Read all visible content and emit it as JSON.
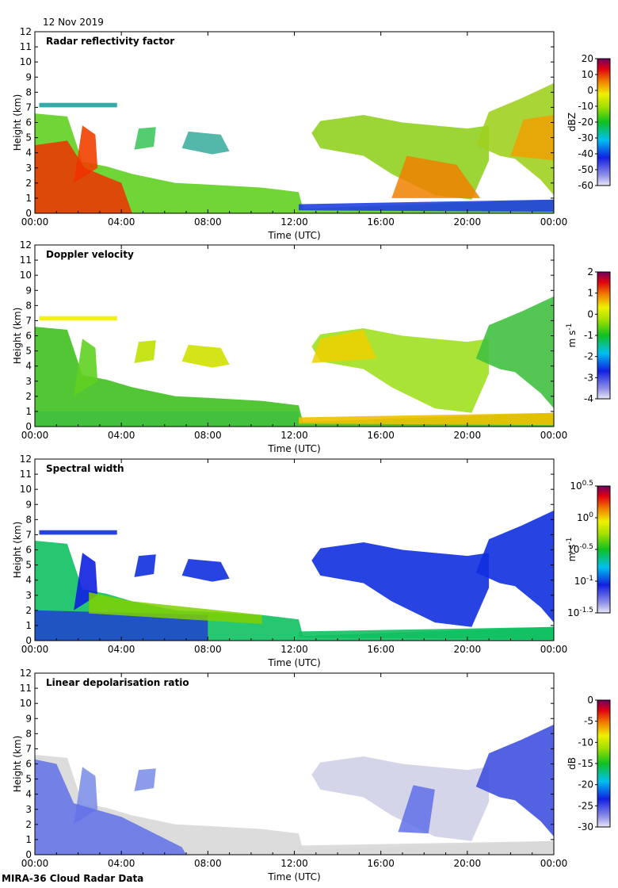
{
  "date_label": "12 Nov 2019",
  "footer_label": "MIRA-36 Cloud Radar Data",
  "chart_data": [
    {
      "type": "heatmap",
      "title": "Radar reflectivity factor",
      "xlabel": "Time (UTC)",
      "ylabel": "Height (km)",
      "xticks": [
        "00:00",
        "04:00",
        "08:00",
        "12:00",
        "16:00",
        "20:00",
        "00:00"
      ],
      "yticks": [
        "0",
        "1",
        "2",
        "3",
        "4",
        "5",
        "6",
        "7",
        "8",
        "9",
        "10",
        "11",
        "12"
      ],
      "ylim": [
        0,
        12
      ],
      "colorbar": {
        "label": "dBZ",
        "ticks": [
          "20",
          "10",
          "0",
          "-10",
          "-20",
          "-30",
          "-40",
          "-50",
          "-60"
        ],
        "range": [
          -60,
          20
        ],
        "scale": "linear"
      }
    },
    {
      "type": "heatmap",
      "title": "Doppler velocity",
      "xlabel": "Time (UTC)",
      "ylabel": "Height (km)",
      "xticks": [
        "00:00",
        "04:00",
        "08:00",
        "12:00",
        "16:00",
        "20:00",
        "00:00"
      ],
      "yticks": [
        "0",
        "1",
        "2",
        "3",
        "4",
        "5",
        "6",
        "7",
        "8",
        "9",
        "10",
        "11",
        "12"
      ],
      "ylim": [
        0,
        12
      ],
      "colorbar": {
        "label": "m s",
        "label_sup": "-1",
        "ticks": [
          "2",
          "1",
          "0",
          "-1",
          "-2",
          "-3",
          "-4"
        ],
        "range": [
          -4,
          2
        ],
        "scale": "linear"
      }
    },
    {
      "type": "heatmap",
      "title": "Spectral width",
      "xlabel": "Time (UTC)",
      "ylabel": "Height (km)",
      "xticks": [
        "00:00",
        "04:00",
        "08:00",
        "12:00",
        "16:00",
        "20:00",
        "00:00"
      ],
      "yticks": [
        "0",
        "1",
        "2",
        "3",
        "4",
        "5",
        "6",
        "7",
        "8",
        "9",
        "10",
        "11",
        "12"
      ],
      "ylim": [
        0,
        12
      ],
      "colorbar": {
        "label": "m s",
        "label_sup": "-1",
        "ticks_pow": [
          [
            "10",
            "0.5"
          ],
          [
            "10",
            "0"
          ],
          [
            "10",
            "-0.5"
          ],
          [
            "10",
            "-1"
          ],
          [
            "10",
            "-1.5"
          ]
        ],
        "range": [
          -1.5,
          0.5
        ],
        "scale": "log"
      }
    },
    {
      "type": "heatmap",
      "title": "Linear depolarisation ratio",
      "xlabel": "Time (UTC)",
      "ylabel": "Height (km)",
      "xticks": [
        "00:00",
        "04:00",
        "08:00",
        "12:00",
        "16:00",
        "20:00",
        "00:00"
      ],
      "yticks": [
        "0",
        "1",
        "2",
        "3",
        "4",
        "5",
        "6",
        "7",
        "8",
        "9",
        "10",
        "11",
        "12"
      ],
      "ylim": [
        0,
        12
      ],
      "colorbar": {
        "label": "dB",
        "ticks": [
          "0",
          "-5",
          "-10",
          "-15",
          "-20",
          "-25",
          "-30"
        ],
        "range": [
          -30,
          0
        ],
        "scale": "linear"
      }
    }
  ]
}
